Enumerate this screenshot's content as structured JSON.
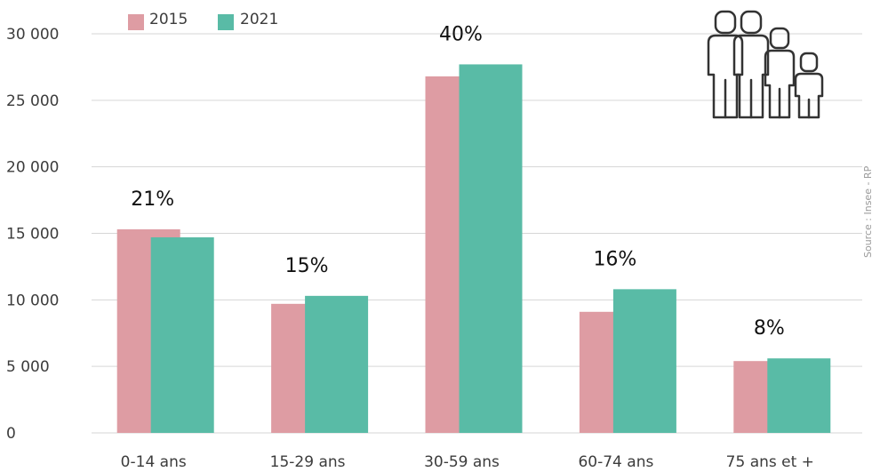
{
  "chart_data": {
    "type": "bar",
    "categories": [
      "0-14 ans",
      "15-29 ans",
      "30-59 ans",
      "60-74 ans",
      "75 ans et +"
    ],
    "series": [
      {
        "name": "2015",
        "color": "#de9ca3",
        "values": [
          15300,
          9700,
          26800,
          9100,
          5400
        ]
      },
      {
        "name": "2021",
        "color": "#59bba6",
        "values": [
          14700,
          10300,
          27700,
          10800,
          5600
        ]
      }
    ],
    "ylim": [
      0,
      30000
    ],
    "yticks": [
      0,
      5000,
      10000,
      15000,
      20000,
      25000,
      30000
    ],
    "ytick_labels": [
      "0",
      "5 000",
      "10 000",
      "15 000",
      "20 000",
      "25 000",
      "30 000"
    ],
    "annotations": [
      "21%",
      "15%",
      "40%",
      "16%",
      "8%"
    ],
    "grid": true,
    "legend_position": "top-left",
    "source": "Source : Insee - RP"
  },
  "icon": "family-icon"
}
